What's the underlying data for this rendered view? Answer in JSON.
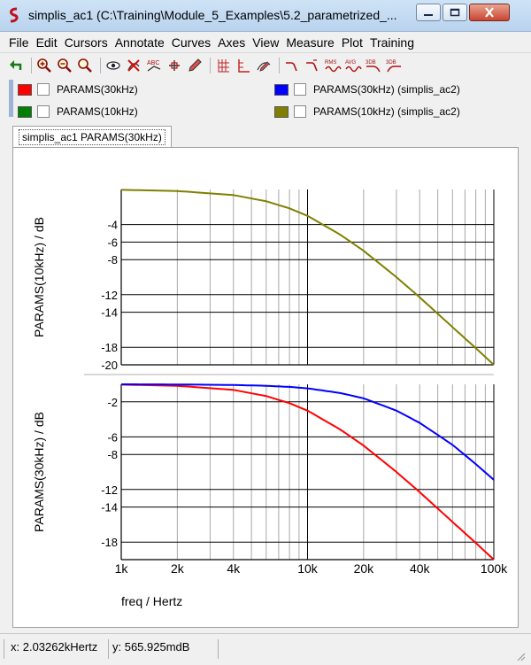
{
  "window": {
    "title": "simplis_ac1 (C:\\Training\\Module_5_Examples\\5.2_parametrized_...",
    "icons": [
      "app-icon",
      "minimize-icon",
      "maximize-icon",
      "close-icon"
    ]
  },
  "menu": [
    "File",
    "Edit",
    "Cursors",
    "Annotate",
    "Curves",
    "Axes",
    "View",
    "Measure",
    "Plot",
    "Training"
  ],
  "toolbar": {
    "icons": [
      "undo-icon",
      "zoom-in-icon",
      "zoom-out-icon",
      "zoom-fit-icon",
      "view-icon",
      "delete-curve-icon",
      "abc-label-icon",
      "cursor-icon",
      "edit-icon",
      "grid-icon",
      "axis-icon",
      "edit-curve-icon",
      "filter-icon",
      "filter2-icon"
    ],
    "labels": [
      "RMS",
      "AVG",
      "3DB",
      "3DB"
    ]
  },
  "legend": [
    {
      "label": "PARAMS(30kHz)",
      "color": "#ff0000"
    },
    {
      "label": "PARAMS(30kHz) (simplis_ac2)",
      "color": "#0000ff"
    },
    {
      "label": "PARAMS(10kHz)",
      "color": "#008000"
    },
    {
      "label": "PARAMS(10kHz) (simplis_ac2)",
      "color": "#808000"
    }
  ],
  "tab": {
    "label": "simplis_ac1 PARAMS(30kHz)"
  },
  "chart_data": [
    {
      "type": "line",
      "ylabel": "PARAMS(10kHz) / dB",
      "xscale": "log",
      "xlim": [
        1000,
        100000
      ],
      "ylim": [
        -20,
        0
      ],
      "ytick_labels": [
        "-4",
        "-6",
        "-8",
        "-12",
        "-14",
        "-18",
        "-20"
      ],
      "grid": true,
      "series": [
        {
          "name": "PARAMS(10kHz) (simplis_ac2)",
          "color": "#808000",
          "x": [
            1000,
            2000,
            4000,
            6000,
            8000,
            10000,
            15000,
            20000,
            30000,
            40000,
            60000,
            80000,
            100000
          ],
          "y": [
            -0.04,
            -0.17,
            -0.64,
            -1.34,
            -2.15,
            -3.01,
            -5.16,
            -6.99,
            -10.0,
            -12.3,
            -15.7,
            -18.1,
            -20.0
          ]
        }
      ]
    },
    {
      "type": "line",
      "ylabel": "PARAMS(30kHz) / dB",
      "xlabel": "freq / Hertz",
      "xscale": "log",
      "xlim": [
        1000,
        100000
      ],
      "ylim": [
        -20,
        0
      ],
      "ytick_labels": [
        "-2",
        "-6",
        "-8",
        "-12",
        "-14",
        "-18"
      ],
      "xtick_labels": [
        "1k",
        "2k",
        "4k",
        "10k",
        "20k",
        "40k",
        "100k"
      ],
      "grid": true,
      "series": [
        {
          "name": "PARAMS(30kHz)",
          "color": "#ff0000",
          "x": [
            1000,
            2000,
            4000,
            6000,
            8000,
            10000,
            15000,
            20000,
            30000,
            40000,
            60000,
            80000,
            100000
          ],
          "y": [
            -0.04,
            -0.17,
            -0.64,
            -1.34,
            -2.15,
            -3.01,
            -5.16,
            -6.99,
            -10.0,
            -12.3,
            -15.7,
            -18.1,
            -20.0
          ]
        },
        {
          "name": "PARAMS(30kHz) (simplis_ac2)",
          "color": "#0000ff",
          "x": [
            1000,
            2000,
            4000,
            6000,
            8000,
            10000,
            15000,
            20000,
            30000,
            40000,
            60000,
            80000,
            100000
          ],
          "y": [
            0.0,
            -0.02,
            -0.08,
            -0.17,
            -0.3,
            -0.46,
            -1.0,
            -1.6,
            -3.0,
            -4.4,
            -6.9,
            -9.1,
            -10.9
          ]
        }
      ]
    }
  ],
  "status": {
    "x_readout": "x: 2.03262kHertz",
    "y_readout": "y: 565.925mdB"
  }
}
